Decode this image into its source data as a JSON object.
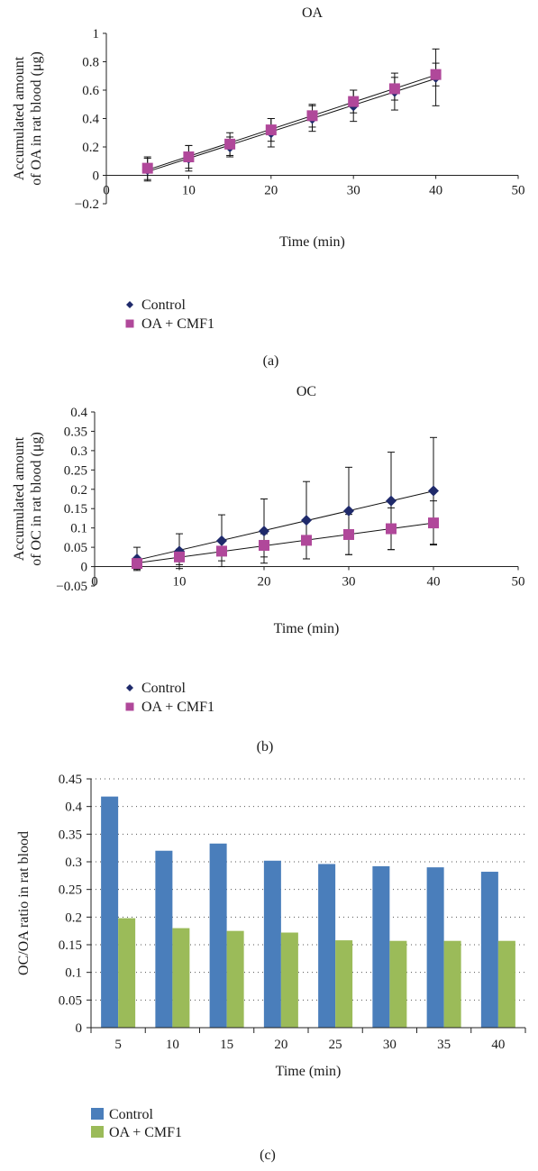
{
  "chart_data": [
    {
      "type": "scatter",
      "title": "OA",
      "xlabel": "Time (min)",
      "ylabel": [
        "Accumulated amount",
        "of OA in rat blood (μg)"
      ],
      "xlim": [
        0,
        50
      ],
      "ylim": [
        -0.2,
        1
      ],
      "xticks": [
        0,
        10,
        20,
        30,
        40,
        50
      ],
      "yticks": [
        -0.2,
        0,
        0.2,
        0.4,
        0.6,
        0.8,
        1
      ],
      "ytick_labels": [
        "−0.2",
        "0",
        "0.2",
        "0.4",
        "0.6",
        "0.8",
        "1"
      ],
      "x": [
        5,
        10,
        15,
        20,
        25,
        30,
        35,
        40
      ],
      "series": [
        {
          "name": "Control",
          "marker": "diamond",
          "color": "#1f2a6b",
          "values": [
            0.04,
            0.12,
            0.2,
            0.3,
            0.4,
            0.49,
            0.59,
            0.69
          ],
          "err": [
            0.08,
            0.09,
            0.07,
            0.1,
            0.09,
            0.11,
            0.13,
            0.2
          ]
        },
        {
          "name": "OA + CMF1",
          "marker": "square",
          "color": "#b0489a",
          "values": [
            0.05,
            0.13,
            0.22,
            0.32,
            0.42,
            0.52,
            0.61,
            0.71
          ],
          "err": [
            0.08,
            0.08,
            0.08,
            0.08,
            0.08,
            0.08,
            0.08,
            0.08
          ]
        }
      ],
      "trendlines": true,
      "legend_position": "bottom-left",
      "caption": "(a)"
    },
    {
      "type": "scatter",
      "title": "OC",
      "xlabel": "Time (min)",
      "ylabel": [
        "Accumulated amount",
        "of OC in rat blood (μg)"
      ],
      "xlim": [
        0,
        50
      ],
      "ylim": [
        -0.05,
        0.4
      ],
      "xticks": [
        0,
        10,
        20,
        30,
        40,
        50
      ],
      "yticks": [
        -0.05,
        0,
        0.05,
        0.1,
        0.15,
        0.2,
        0.25,
        0.3,
        0.35,
        0.4
      ],
      "ytick_labels": [
        "−0.05",
        "0",
        "0.05",
        "0.1",
        "0.15",
        "0.2",
        "0.25",
        "0.3",
        "0.35",
        "0.4"
      ],
      "x": [
        5,
        10,
        15,
        20,
        25,
        30,
        35,
        40
      ],
      "series": [
        {
          "name": "Control",
          "marker": "diamond",
          "color": "#1f2a6b",
          "values": [
            0.02,
            0.04,
            0.067,
            0.092,
            0.12,
            0.144,
            0.17,
            0.196
          ],
          "err": [
            0.03,
            0.045,
            0.067,
            0.083,
            0.1,
            0.113,
            0.126,
            0.138
          ]
        },
        {
          "name": "OA + CMF1",
          "marker": "square",
          "color": "#b0489a",
          "values": [
            0.008,
            0.025,
            0.04,
            0.055,
            0.068,
            0.083,
            0.098,
            0.113
          ],
          "err": [
            0.015,
            0.02,
            0.025,
            0.03,
            0.048,
            0.052,
            0.054,
            0.057
          ]
        }
      ],
      "trendlines": true,
      "legend_position": "bottom-left",
      "caption": "(b)"
    },
    {
      "type": "bar",
      "xlabel": "Time (min)",
      "ylabel": [
        "OC/OA ratio in rat blood"
      ],
      "ylim": [
        0,
        0.45
      ],
      "yticks": [
        0,
        0.05,
        0.1,
        0.15,
        0.2,
        0.25,
        0.3,
        0.35,
        0.4,
        0.45
      ],
      "ytick_labels": [
        "0",
        "0.05",
        "0.1",
        "0.15",
        "0.2",
        "0.25",
        "0.3",
        "0.35",
        "0.4",
        "0.45"
      ],
      "categories": [
        "5",
        "10",
        "15",
        "20",
        "25",
        "30",
        "35",
        "40"
      ],
      "series": [
        {
          "name": "Control",
          "color": "#4a7ebb",
          "values": [
            0.418,
            0.32,
            0.333,
            0.302,
            0.296,
            0.292,
            0.29,
            0.282
          ]
        },
        {
          "name": "OA + CMF1",
          "color": "#9bbb59",
          "values": [
            0.198,
            0.18,
            0.175,
            0.172,
            0.158,
            0.157,
            0.157,
            0.157
          ]
        }
      ],
      "grid": "horizontal-dotted",
      "legend_position": "bottom-left",
      "caption": "(c)"
    }
  ]
}
